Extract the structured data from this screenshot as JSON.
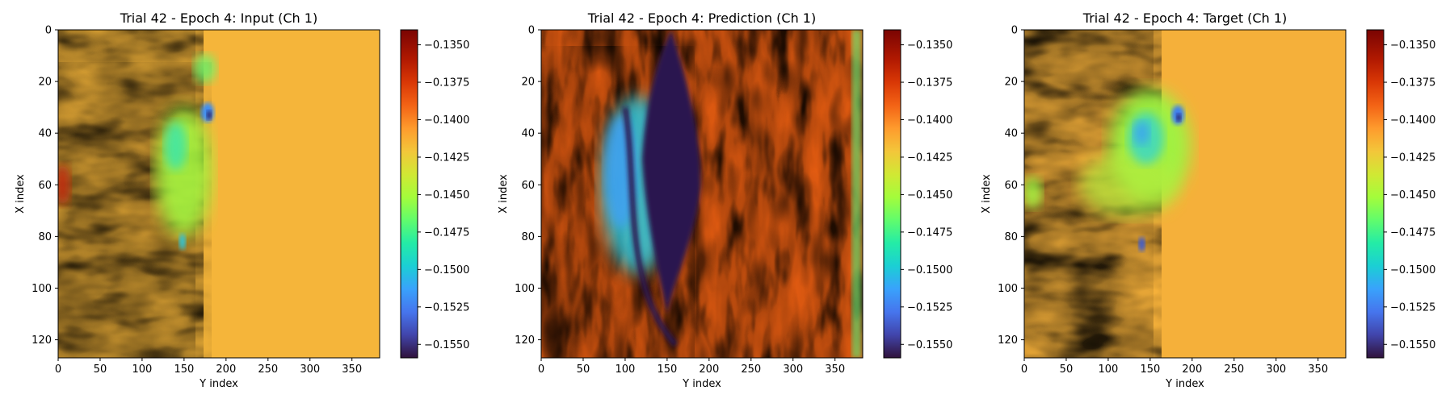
{
  "colors": {
    "background": "#ffffff",
    "axes": "#000000",
    "colormap": "turbo"
  },
  "chart_data": [
    {
      "type": "heatmap",
      "title": "Trial 42 - Epoch 4: Input (Ch 1)",
      "xlabel": "Y index",
      "ylabel": "X index",
      "xlim": [
        0,
        383
      ],
      "ylim": [
        127,
        0
      ],
      "xticks": [
        0,
        50,
        100,
        150,
        200,
        250,
        300,
        350
      ],
      "yticks": [
        0,
        20,
        40,
        60,
        80,
        100,
        120
      ],
      "colorbar": {
        "min": -0.1559,
        "max": -0.134,
        "ticks": [
          "−0.1350",
          "−0.1375",
          "−0.1400",
          "−0.1425",
          "−0.1450",
          "−0.1475",
          "−0.1500",
          "−0.1525",
          "−0.1550"
        ],
        "tick_values": [
          -0.135,
          -0.1375,
          -0.14,
          -0.1425,
          -0.145,
          -0.1475,
          -0.15,
          -0.1525,
          -0.155
        ]
      },
      "description_fields": {
        "background_level": -0.14
      }
    },
    {
      "type": "heatmap",
      "title": "Trial 42 - Epoch 4: Prediction (Ch 1)",
      "xlabel": "Y index",
      "ylabel": "X index",
      "xlim": [
        0,
        383
      ],
      "ylim": [
        127,
        0
      ],
      "xticks": [
        0,
        50,
        100,
        150,
        200,
        250,
        300,
        350
      ],
      "yticks": [
        0,
        20,
        40,
        60,
        80,
        100,
        120
      ],
      "colorbar": {
        "min": -0.1559,
        "max": -0.134,
        "ticks": [
          "−0.1350",
          "−0.1375",
          "−0.1400",
          "−0.1425",
          "−0.1450",
          "−0.1475",
          "−0.1500",
          "−0.1525",
          "−0.1550"
        ],
        "tick_values": [
          -0.135,
          -0.1375,
          -0.14,
          -0.1425,
          -0.145,
          -0.1475,
          -0.15,
          -0.1525,
          -0.155
        ]
      },
      "description_fields": {
        "background_level": -0.1375
      }
    },
    {
      "type": "heatmap",
      "title": "Trial 42 - Epoch 4: Target (Ch 1)",
      "xlabel": "Y index",
      "ylabel": "X index",
      "xlim": [
        0,
        383
      ],
      "ylim": [
        127,
        0
      ],
      "xticks": [
        0,
        50,
        100,
        150,
        200,
        250,
        300,
        350
      ],
      "yticks": [
        0,
        20,
        40,
        60,
        80,
        100,
        120
      ],
      "colorbar": {
        "min": -0.1559,
        "max": -0.134,
        "ticks": [
          "−0.1350",
          "−0.1375",
          "−0.1400",
          "−0.1425",
          "−0.1450",
          "−0.1475",
          "−0.1500",
          "−0.1525",
          "−0.1550"
        ],
        "tick_values": [
          -0.135,
          -0.1375,
          -0.14,
          -0.1425,
          -0.145,
          -0.1475,
          -0.15,
          -0.1525,
          -0.155
        ]
      },
      "description_fields": {
        "background_level": -0.1405
      }
    }
  ]
}
